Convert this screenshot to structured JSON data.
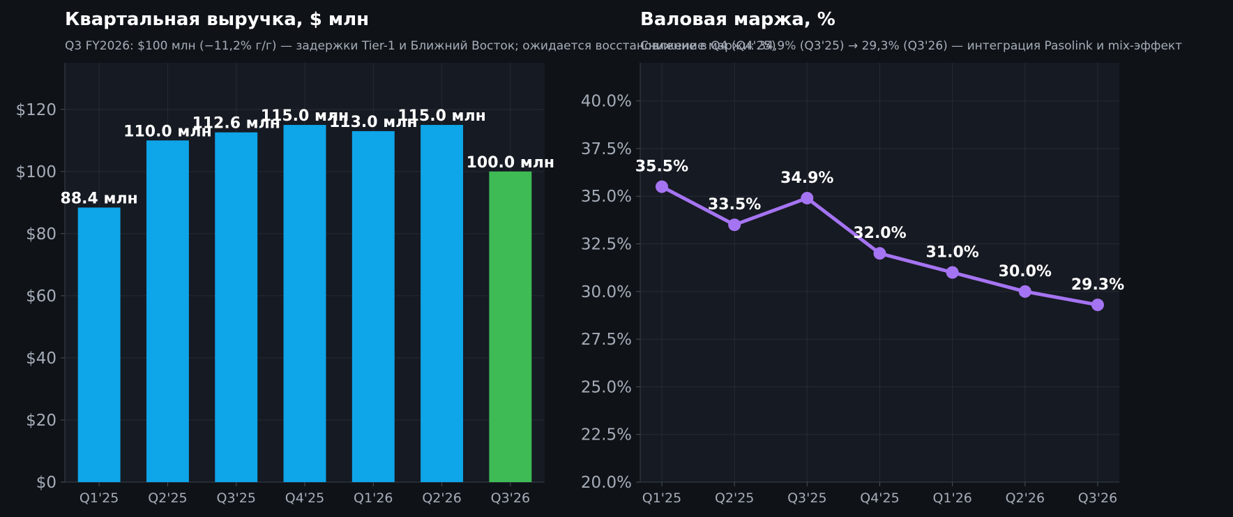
{
  "colors": {
    "background": "#0f1318",
    "plot_background": "#161a22",
    "grid": "#262b35",
    "axis_text": "#a6adb8",
    "title_text": "#ffffff",
    "subtitle_text": "#a6adb8",
    "label_text": "#ffffff",
    "bar_blue": "#0ea5e9",
    "bar_green": "#3fbb55",
    "line_purple": "#a574f2"
  },
  "chart_data": [
    {
      "type": "bar",
      "title": "Квартальная выручка, $ млн",
      "subtitle": "Q3 FY2026: $100 млн (−11,2% г/г) — задержки Tier-1 и Ближний Восток; ожидается восстановление в Q4 (Q4'25)",
      "categories": [
        "Q1'25",
        "Q2'25",
        "Q3'25",
        "Q4'25",
        "Q1'26",
        "Q2'26",
        "Q3'26"
      ],
      "values": [
        88.4,
        110.0,
        112.6,
        115.0,
        113.0,
        115.0,
        100.0
      ],
      "value_labels": [
        "88.4 млн",
        "110.0 млн",
        "112.6 млн",
        "115.0 млн",
        "113.0 млн",
        "115.0 млн",
        "100.0 млн"
      ],
      "highlight_index": 6,
      "ylim": [
        0,
        135
      ],
      "yticks": [
        0,
        20,
        40,
        60,
        80,
        100,
        120
      ],
      "ytick_labels": [
        "$0",
        "$20",
        "$40",
        "$60",
        "$80",
        "$100",
        "$120"
      ],
      "xlabel": "",
      "ylabel": "",
      "grid": true
    },
    {
      "type": "line",
      "title": "Валовая маржа, %",
      "subtitle": "Снижение маржи: 34,9% (Q3'25) → 29,3% (Q3'26) — интеграция Pasolink и mix-эффект",
      "categories": [
        "Q1'25",
        "Q2'25",
        "Q3'25",
        "Q4'25",
        "Q1'26",
        "Q2'26",
        "Q3'26"
      ],
      "values": [
        35.5,
        33.5,
        34.9,
        32.0,
        31.0,
        30.0,
        29.3
      ],
      "value_labels": [
        "35.5%",
        "33.5%",
        "34.9%",
        "32.0%",
        "31.0%",
        "30.0%",
        "29.3%"
      ],
      "ylim": [
        20,
        42
      ],
      "yticks": [
        20,
        22.5,
        25,
        27.5,
        30,
        32.5,
        35,
        37.5,
        40
      ],
      "ytick_labels": [
        "20.0%",
        "22.5%",
        "25.0%",
        "27.5%",
        "30.0%",
        "32.5%",
        "35.0%",
        "37.5%",
        "40.0%"
      ],
      "xlabel": "",
      "ylabel": "",
      "grid": true
    }
  ]
}
